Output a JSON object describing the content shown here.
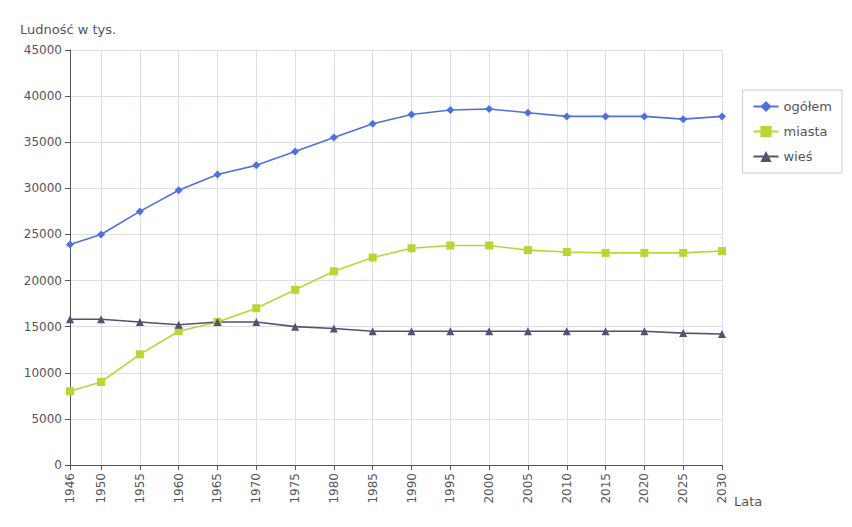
{
  "chart_data": {
    "type": "line",
    "xlabel": "Lata",
    "ylabel": "Ludność w tys.",
    "x": [
      1946,
      1950,
      1955,
      1960,
      1965,
      1970,
      1975,
      1980,
      1985,
      1990,
      1995,
      2000,
      2005,
      2010,
      2015,
      2020,
      2025,
      2030
    ],
    "series": [
      {
        "name": "ogółem",
        "marker": "diamond",
        "values": [
          23900,
          25000,
          27500,
          29800,
          31500,
          32500,
          34000,
          35500,
          37000,
          38000,
          38500,
          38600,
          38200,
          37800,
          37800,
          37800,
          37500,
          37800
        ]
      },
      {
        "name": "miasta",
        "marker": "square",
        "values": [
          8000,
          9000,
          12000,
          14500,
          15500,
          17000,
          19000,
          21000,
          22500,
          23500,
          23800,
          23800,
          23300,
          23100,
          23000,
          23000,
          23000,
          23200
        ]
      },
      {
        "name": "wieś",
        "marker": "triangle",
        "values": [
          15800,
          15800,
          15500,
          15200,
          15500,
          15500,
          15000,
          14800,
          14500,
          14500,
          14500,
          14500,
          14500,
          14500,
          14500,
          14500,
          14300,
          14200
        ]
      }
    ],
    "xlim": [
      1946,
      2030
    ],
    "xticks": [
      1946,
      1950,
      1955,
      1960,
      1965,
      1970,
      1975,
      1980,
      1985,
      1990,
      1995,
      2000,
      2005,
      2010,
      2015,
      2020,
      2025,
      2030
    ],
    "ylim": [
      0,
      45000
    ],
    "yticks": [
      0,
      5000,
      10000,
      15000,
      20000,
      25000,
      30000,
      35000,
      40000,
      45000
    ],
    "grid": true,
    "legend": "right"
  }
}
